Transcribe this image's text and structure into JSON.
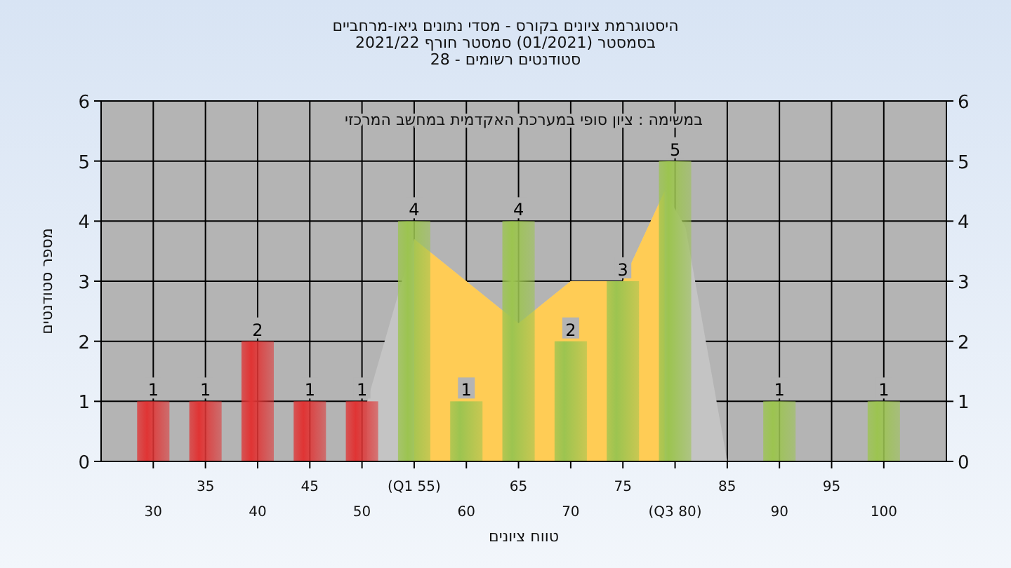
{
  "chart_data": {
    "type": "bar",
    "title": "היסטוגרמת ציונים בקורס - מסדי נתונים גיאו-מרחביים\nבסמסטר  (01/2021)  סמסטר חורף 2021/22\nסטודנטים רשומים - 28",
    "xlabel": "טווח ציונים",
    "ylabel": "מספר סטודנטים",
    "annotations": [
      "במשימה : ציון סופי במערכת האקדמית במחשב המרכזי"
    ],
    "categories": [
      "30",
      "35",
      "40",
      "45",
      "50",
      "(Q1 55)",
      "60",
      "65",
      "70",
      "75",
      "(Q3 80)",
      "85",
      "90",
      "95",
      "100"
    ],
    "series": [
      {
        "values": [
          1,
          1,
          2,
          1,
          1,
          4,
          1,
          4,
          2,
          3,
          5,
          0,
          1,
          0,
          1
        ],
        "colors": [
          "#e03434",
          "#e03434",
          "#e03434",
          "#e03434",
          "#e03434",
          "#9cc450",
          "#9cc450",
          "#9cc450",
          "#9cc450",
          "#9cc450",
          "#9cc450",
          "#9cc450",
          "#9cc450",
          "#9cc450",
          "#9cc450"
        ],
        "value_labels": [
          "1",
          "1",
          "2",
          "1",
          "1",
          "4",
          "1",
          "4",
          "2",
          "3",
          "5",
          null,
          "1",
          null,
          "1"
        ]
      }
    ],
    "ylim": [
      0,
      6
    ],
    "yticks": [
      0,
      1,
      2,
      3,
      4,
      5,
      6
    ],
    "y2lim": [
      0,
      6
    ],
    "y2ticks": [
      0,
      1,
      2,
      3,
      4,
      5,
      6
    ],
    "grid": true
  }
}
